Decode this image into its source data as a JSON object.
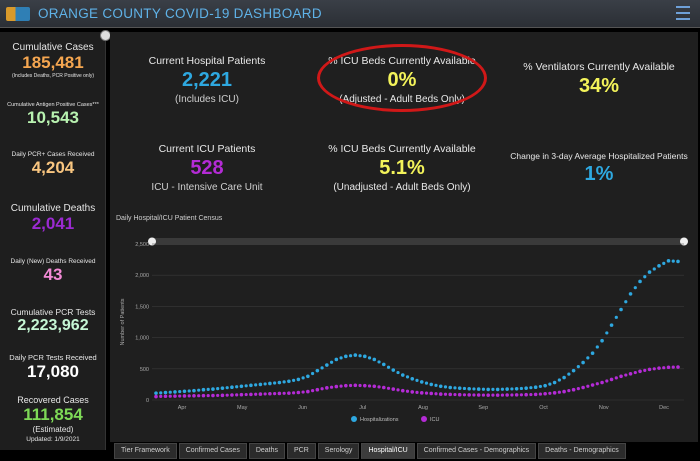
{
  "header": {
    "title": "ORANGE COUNTY COVID-19 DASHBOARD"
  },
  "sidebar": {
    "cumulative_cases": {
      "label": "Cumulative Cases",
      "value": "185,481",
      "note": "(Includes Deaths, PCR Positive only)"
    },
    "antigen": {
      "label": "Cumulative Antigen Positive Cases***",
      "value": "10,543"
    },
    "daily_pcr": {
      "label": "Daily PCR+ Cases Received",
      "value": "4,204"
    },
    "cumulative_deaths": {
      "label": "Cumulative Deaths",
      "value": "2,041"
    },
    "daily_deaths": {
      "label": "Daily (New) Deaths Received",
      "value": "43"
    },
    "cumulative_pcr_tests": {
      "label": "Cumulative PCR Tests",
      "value": "2,223,962"
    },
    "daily_pcr_tests": {
      "label": "Daily PCR Tests Received",
      "value": "17,080"
    },
    "recovered": {
      "label": "Recovered Cases",
      "value": "111,854",
      "note": "(Estimated)",
      "updated": "Updated: 1/9/2021"
    },
    "colors": {
      "orange": "#f5a650",
      "green": "#b8f2b0",
      "peach": "#f9c680",
      "purple": "#9b2ad1",
      "pink": "#f38ad6",
      "mint": "#c6f6d5",
      "white": "#ffffff",
      "lime": "#7ed957"
    }
  },
  "cards": {
    "hospital_patients": {
      "label": "Current Hospital Patients",
      "value": "2,221",
      "sub": "(Includes ICU)",
      "color": "#2ea8e0"
    },
    "icu_beds_adjusted": {
      "label": "% ICU Beds Currently Available",
      "value": "0%",
      "sub": "(Adjusted - Adult Beds Only)",
      "color": "#f3f35a"
    },
    "ventilators": {
      "label": "% Ventilators Currently Available",
      "value": "34%",
      "color": "#f3f35a"
    },
    "icu_patients": {
      "label": "Current ICU Patients",
      "value": "528",
      "sub": "ICU - Intensive Care Unit",
      "color": "#b42bd6"
    },
    "icu_beds_unadjusted": {
      "label": "% ICU Beds Currently Available",
      "value": "5.1%",
      "sub": "(Unadjusted - Adult Beds Only)",
      "color": "#f3f35a"
    },
    "change_3day": {
      "label": "Change in 3-day Average Hospitalized Patients",
      "value": "1%",
      "color": "#2ea8e0"
    }
  },
  "chart": {
    "title": "Daily Hospital/ICU Patient Census"
  },
  "chart_data": {
    "type": "scatter",
    "ylabel": "Number of Patients",
    "ylim": [
      0,
      2500
    ],
    "yticks": [
      "0",
      "500",
      "1,000",
      "1,500",
      "2,000",
      "2,500"
    ],
    "x_labels": [
      "Apr",
      "May",
      "Jun",
      "Jul",
      "Aug",
      "Sep",
      "Oct",
      "Nov",
      "Dec"
    ],
    "series": [
      {
        "name": "Hospitalizations",
        "color": "#2ea8e0",
        "values": [
          110,
          120,
          130,
          140,
          150,
          165,
          175,
          190,
          205,
          220,
          235,
          250,
          265,
          280,
          300,
          330,
          380,
          470,
          560,
          650,
          700,
          720,
          700,
          650,
          570,
          480,
          400,
          340,
          290,
          250,
          220,
          200,
          190,
          180,
          175,
          170,
          170,
          175,
          180,
          190,
          205,
          230,
          280,
          360,
          470,
          600,
          750,
          950,
          1200,
          1450,
          1700,
          1900,
          2050,
          2150,
          2230,
          2221
        ]
      },
      {
        "name": "ICU",
        "color": "#b42bd6",
        "values": [
          55,
          60,
          62,
          65,
          68,
          70,
          72,
          75,
          80,
          85,
          90,
          95,
          100,
          105,
          110,
          120,
          135,
          165,
          195,
          215,
          230,
          235,
          230,
          220,
          200,
          175,
          150,
          130,
          115,
          105,
          95,
          90,
          85,
          82,
          80,
          78,
          78,
          80,
          82,
          85,
          90,
          100,
          115,
          135,
          165,
          200,
          240,
          280,
          330,
          380,
          420,
          460,
          490,
          510,
          525,
          528
        ]
      }
    ],
    "legend": [
      "Hospitalizations",
      "ICU"
    ],
    "legend_position": "bottom"
  },
  "tabs": [
    "Tier Framework",
    "Confirmed Cases",
    "Deaths",
    "PCR",
    "Serology",
    "Hospital/ICU",
    "Confirmed Cases - Demographics",
    "Deaths - Demographics"
  ],
  "active_tab": "Hospital/ICU"
}
